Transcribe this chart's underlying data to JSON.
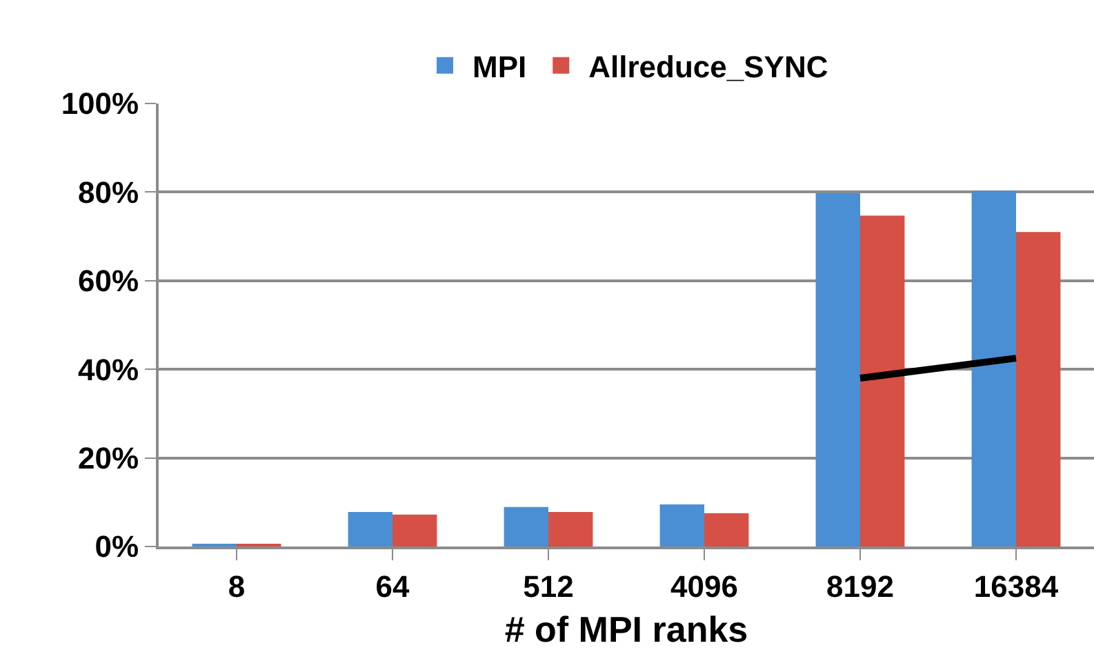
{
  "chart_data": {
    "type": "bar",
    "xlabel": "# of MPI ranks",
    "categories": [
      "8",
      "64",
      "512",
      "4096",
      "8192",
      "16384"
    ],
    "series": [
      {
        "name": "MPI",
        "color": "#4a8fd4",
        "values": [
          0.6,
          7.8,
          8.9,
          9.5,
          79.8,
          80.3
        ]
      },
      {
        "name": "Allreduce_SYNC",
        "color": "#d65045",
        "values": [
          0.6,
          7.2,
          7.8,
          7.5,
          74.7,
          71.0
        ]
      },
      {
        "type": "line",
        "color": "#000000",
        "values": [
          null,
          null,
          null,
          null,
          38.0,
          42.5
        ]
      }
    ],
    "ylim": [
      0,
      100
    ],
    "yticks": [
      {
        "value": 0,
        "label": "0%"
      },
      {
        "value": 20,
        "label": "20%"
      },
      {
        "value": 40,
        "label": "40%"
      },
      {
        "value": 60,
        "label": "60%"
      },
      {
        "value": 80,
        "label": "80%"
      },
      {
        "value": 100,
        "label": "100%"
      }
    ],
    "grid": "y",
    "legend": "top"
  }
}
